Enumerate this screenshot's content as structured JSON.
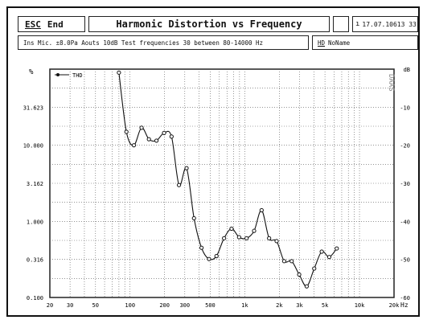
{
  "toolbar": {
    "esc_key": "ESC",
    "esc_label": "End",
    "title": "Harmonic Distortion vs Frequency",
    "datetime": "17.07.10613 33"
  },
  "info": {
    "text": "Ins Mic. ±8.0Pa   Aouts 10dB    Test frequencies 30 between 80-14000 Hz",
    "hd_key": "HD",
    "hd_name": "NoName"
  },
  "colors": {
    "line": "#111111",
    "grid": "#555555",
    "frame": "#222222"
  },
  "chart_data": {
    "type": "line",
    "title": "Harmonic Distortion vs Frequency",
    "left_unit": "%",
    "right_unit": "dB",
    "x_unit": "Hz",
    "watermark": "DAAS",
    "x_scale": "log",
    "xlim": [
      20,
      20000
    ],
    "ylim_db": [
      -60,
      0
    ],
    "x_ticks": [
      {
        "value": 20,
        "label": "20"
      },
      {
        "value": 30,
        "label": "30"
      },
      {
        "value": 50,
        "label": "50"
      },
      {
        "value": 100,
        "label": "100"
      },
      {
        "value": 200,
        "label": "200"
      },
      {
        "value": 300,
        "label": "300"
      },
      {
        "value": 500,
        "label": "500"
      },
      {
        "value": 1000,
        "label": "1k"
      },
      {
        "value": 2000,
        "label": "2k"
      },
      {
        "value": 3000,
        "label": "3k"
      },
      {
        "value": 5000,
        "label": "5k"
      },
      {
        "value": 10000,
        "label": "10k"
      },
      {
        "value": 20000,
        "label": "20k"
      }
    ],
    "y_left_ticks": [
      {
        "db": -10,
        "label": "31.623"
      },
      {
        "db": -20,
        "label": "10.000"
      },
      {
        "db": -30,
        "label": "3.162"
      },
      {
        "db": -40,
        "label": "1.000"
      },
      {
        "db": -50,
        "label": "0.316"
      },
      {
        "db": -60,
        "label": "0.100"
      }
    ],
    "y_right_ticks": [
      {
        "db": 0,
        "label": "dB"
      },
      {
        "db": -10,
        "label": "-10"
      },
      {
        "db": -20,
        "label": "-20"
      },
      {
        "db": -30,
        "label": "-30"
      },
      {
        "db": -40,
        "label": "-40"
      },
      {
        "db": -50,
        "label": "-50"
      },
      {
        "db": -60,
        "label": "-60"
      }
    ],
    "grid": true,
    "legend_position": "top-left",
    "series": [
      {
        "name": "THD",
        "points": [
          {
            "x": 80,
            "y_pct": 90
          },
          {
            "x": 93,
            "y_pct": 15
          },
          {
            "x": 108,
            "y_pct": 10
          },
          {
            "x": 126,
            "y_pct": 17
          },
          {
            "x": 146,
            "y_pct": 12
          },
          {
            "x": 170,
            "y_pct": 11.5
          },
          {
            "x": 198,
            "y_pct": 14.5
          },
          {
            "x": 230,
            "y_pct": 13
          },
          {
            "x": 267,
            "y_pct": 3.0
          },
          {
            "x": 311,
            "y_pct": 5.0
          },
          {
            "x": 361,
            "y_pct": 1.1
          },
          {
            "x": 420,
            "y_pct": 0.45
          },
          {
            "x": 488,
            "y_pct": 0.32
          },
          {
            "x": 567,
            "y_pct": 0.35
          },
          {
            "x": 660,
            "y_pct": 0.6
          },
          {
            "x": 767,
            "y_pct": 0.8
          },
          {
            "x": 892,
            "y_pct": 0.62
          },
          {
            "x": 1037,
            "y_pct": 0.6
          },
          {
            "x": 1206,
            "y_pct": 0.75
          },
          {
            "x": 1402,
            "y_pct": 1.4
          },
          {
            "x": 1630,
            "y_pct": 0.6
          },
          {
            "x": 1896,
            "y_pct": 0.55
          },
          {
            "x": 2205,
            "y_pct": 0.3
          },
          {
            "x": 2564,
            "y_pct": 0.3
          },
          {
            "x": 2981,
            "y_pct": 0.2
          },
          {
            "x": 3466,
            "y_pct": 0.14
          },
          {
            "x": 4031,
            "y_pct": 0.24
          },
          {
            "x": 4687,
            "y_pct": 0.4
          },
          {
            "x": 5450,
            "y_pct": 0.34
          },
          {
            "x": 6337,
            "y_pct": 0.44
          }
        ]
      }
    ]
  }
}
